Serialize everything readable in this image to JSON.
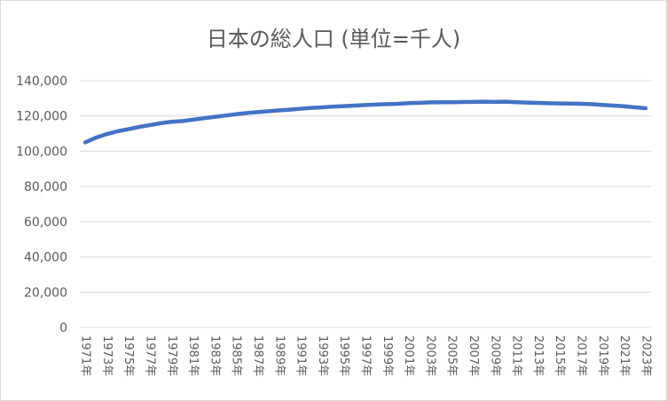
{
  "chart_data": {
    "type": "line",
    "title": "日本の総人口 (単位=千人)",
    "xlabel": "",
    "ylabel": "",
    "ylim": [
      0,
      140000
    ],
    "yticks": [
      0,
      20000,
      40000,
      60000,
      80000,
      100000,
      120000,
      140000
    ],
    "ytick_labels": [
      "0",
      "20,000",
      "40,000",
      "60,000",
      "80,000",
      "100,000",
      "120,000",
      "140,000"
    ],
    "grid": true,
    "legend": "none",
    "color": "#4472c4",
    "x": [
      "1971年",
      "1972年",
      "1973年",
      "1974年",
      "1975年",
      "1976年",
      "1977年",
      "1978年",
      "1979年",
      "1980年",
      "1981年",
      "1982年",
      "1983年",
      "1984年",
      "1985年",
      "1986年",
      "1987年",
      "1988年",
      "1989年",
      "1990年",
      "1991年",
      "1992年",
      "1993年",
      "1994年",
      "1995年",
      "1996年",
      "1997年",
      "1998年",
      "1999年",
      "2000年",
      "2001年",
      "2002年",
      "2003年",
      "2004年",
      "2005年",
      "2006年",
      "2007年",
      "2008年",
      "2009年",
      "2010年",
      "2011年",
      "2012年",
      "2013年",
      "2014年",
      "2015年",
      "2016年",
      "2017年",
      "2018年",
      "2019年",
      "2020年",
      "2021年",
      "2022年",
      "2023年"
    ],
    "x_tick_labels": [
      "1971年",
      "1973年",
      "1975年",
      "1977年",
      "1979年",
      "1981年",
      "1983年",
      "1985年",
      "1987年",
      "1989年",
      "1991年",
      "1993年",
      "1995年",
      "1997年",
      "1999年",
      "2001年",
      "2003年",
      "2005年",
      "2007年",
      "2009年",
      "2011年",
      "2013年",
      "2015年",
      "2017年",
      "2019年",
      "2021年",
      "2023年"
    ],
    "series": [
      {
        "values": [
          105000,
          107700,
          109700,
          111300,
          112500,
          113800,
          114800,
          115900,
          116700,
          117100,
          117900,
          118700,
          119500,
          120200,
          121000,
          121700,
          122200,
          122700,
          123200,
          123600,
          124100,
          124600,
          124900,
          125300,
          125600,
          125900,
          126200,
          126500,
          126700,
          126900,
          127300,
          127500,
          127700,
          127800,
          127800,
          127900,
          128000,
          128100,
          128000,
          128100,
          127800,
          127600,
          127400,
          127200,
          127100,
          127000,
          126900,
          126700,
          126300,
          125900,
          125500,
          124900,
          124400
        ]
      }
    ]
  }
}
